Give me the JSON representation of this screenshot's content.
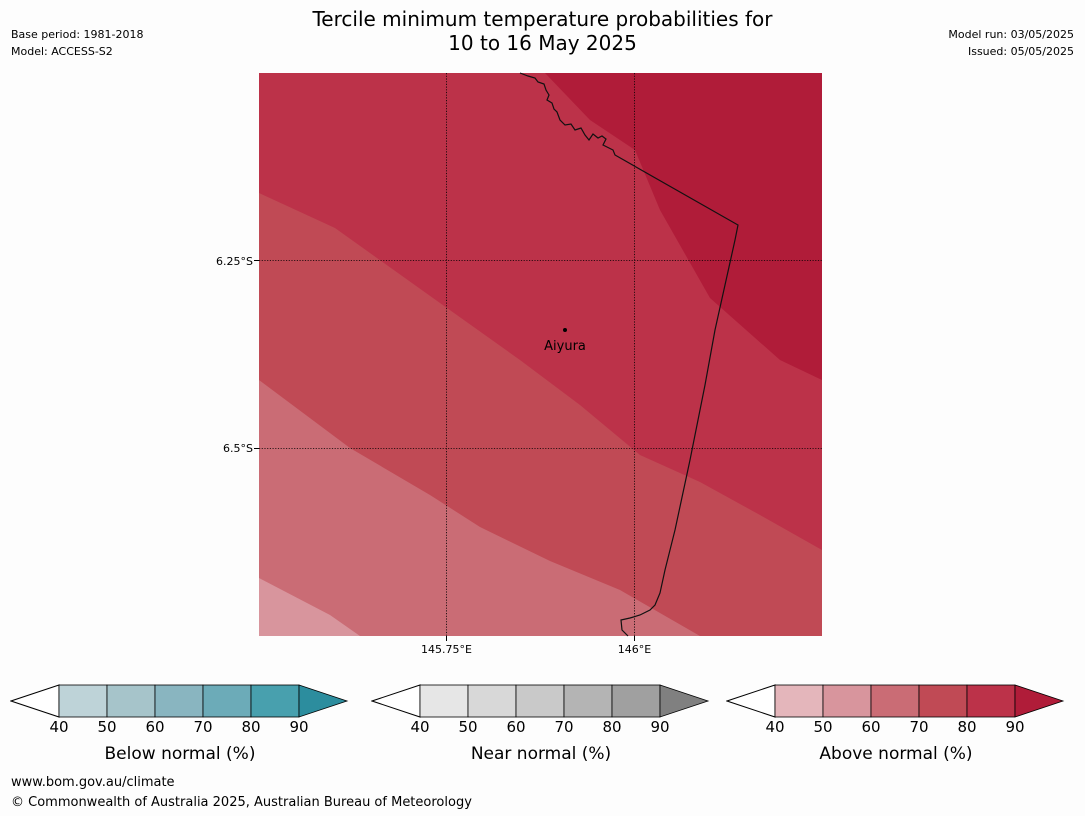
{
  "title": {
    "line1": "Tercile minimum temperature probabilities for",
    "line2": "10 to 16 May 2025"
  },
  "meta_left": {
    "base_period": "Base period: 1981-2018",
    "model": "Model: ACCESS-S2"
  },
  "meta_right": {
    "model_run": "Model run: 03/05/2025",
    "issued": "Issued: 05/05/2025"
  },
  "map": {
    "lat_labels": [
      "6.25°S",
      "6.5°S"
    ],
    "lon_labels": [
      "145.75°E",
      "146°E"
    ],
    "place": "Aiyura",
    "colors": {
      "above_50_60": "#d8959d",
      "above_60_70": "#ca6c75",
      "above_70_80": "#c04a55",
      "above_80_90": "#bc3249",
      "above_90": "#b01c39"
    }
  },
  "colorbars": [
    {
      "label": "Below normal (%)",
      "ticks": [
        "40",
        "50",
        "60",
        "70",
        "80",
        "90"
      ],
      "colors": [
        "#bed3d8",
        "#a6c4ca",
        "#89b5c0",
        "#6cabb8",
        "#48a0ae"
      ],
      "over_color": "#2c8d9e"
    },
    {
      "label": "Near normal (%)",
      "ticks": [
        "40",
        "50",
        "60",
        "70",
        "80",
        "90"
      ],
      "colors": [
        "#e6e6e6",
        "#d8d8d8",
        "#c9c9c9",
        "#b4b4b4",
        "#a0a0a0"
      ],
      "over_color": "#808080"
    },
    {
      "label": "Above normal (%)",
      "ticks": [
        "40",
        "50",
        "60",
        "70",
        "80",
        "90"
      ],
      "colors": [
        "#e4b6bb",
        "#d8959d",
        "#ca6c75",
        "#c04a55",
        "#bc3249"
      ],
      "over_color": "#b01c39"
    }
  ],
  "footer": {
    "url": "www.bom.gov.au/climate",
    "copyright": "© Commonwealth of Australia 2025, Australian Bureau of Meteorology"
  }
}
